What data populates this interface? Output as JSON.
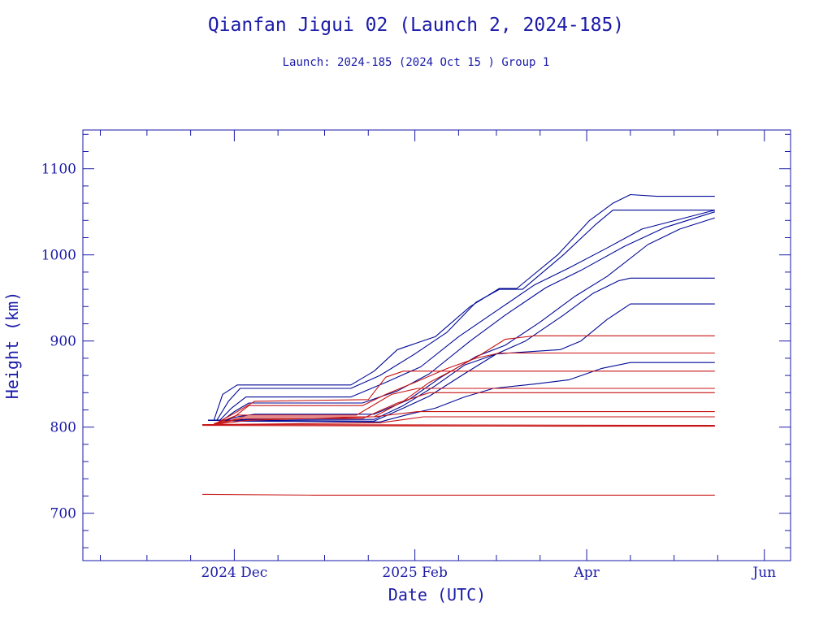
{
  "chart_data": {
    "type": "line",
    "title": "Qianfan Jigui 02 (Launch 2, 2024-185)",
    "subtitle": "Launch: 2024-185  (2024 Oct 15 )  Group 1",
    "xlabel": "Date (UTC)",
    "ylabel": "Height (km)",
    "x_type": "date",
    "xlim": [
      "2024-10-10",
      "2025-06-10"
    ],
    "ylim": [
      645,
      1145
    ],
    "x_ticks": [
      {
        "date": "2024-12-01",
        "label": "2024 Dec"
      },
      {
        "date": "2025-02-01",
        "label": "2025 Feb"
      },
      {
        "date": "2025-04-01",
        "label": "Apr"
      },
      {
        "date": "2025-06-01",
        "label": "Jun"
      }
    ],
    "y_ticks": [
      700,
      800,
      900,
      1000,
      1100
    ],
    "grid": false,
    "colors": {
      "axis": "#1a1aa8",
      "group_a": "#000a96",
      "group_b": "#c81414"
    },
    "series": [
      {
        "color": "#000a96",
        "points": [
          [
            "2024-11-22",
            808
          ],
          [
            "2024-11-24",
            808
          ],
          [
            "2024-11-27",
            838
          ],
          [
            "2024-12-02",
            849
          ],
          [
            "2025-01-10",
            849
          ],
          [
            "2025-01-18",
            865
          ],
          [
            "2025-01-26",
            890
          ],
          [
            "2025-02-08",
            905
          ],
          [
            "2025-02-20",
            940
          ],
          [
            "2025-03-02",
            961
          ],
          [
            "2025-03-08",
            961
          ],
          [
            "2025-03-22",
            1000
          ],
          [
            "2025-04-02",
            1040
          ],
          [
            "2025-04-10",
            1060
          ],
          [
            "2025-04-16",
            1070
          ],
          [
            "2025-04-25",
            1068
          ],
          [
            "2025-05-15",
            1068
          ]
        ]
      },
      {
        "color": "#000a96",
        "points": [
          [
            "2024-11-22",
            808
          ],
          [
            "2024-11-25",
            808
          ],
          [
            "2024-11-29",
            830
          ],
          [
            "2024-12-03",
            845
          ],
          [
            "2025-01-10",
            845
          ],
          [
            "2025-01-20",
            860
          ],
          [
            "2025-02-01",
            885
          ],
          [
            "2025-02-12",
            910
          ],
          [
            "2025-02-22",
            945
          ],
          [
            "2025-03-02",
            960
          ],
          [
            "2025-03-10",
            960
          ],
          [
            "2025-03-24",
            1000
          ],
          [
            "2025-04-04",
            1035
          ],
          [
            "2025-04-10",
            1052
          ],
          [
            "2025-05-15",
            1052
          ]
        ]
      },
      {
        "color": "#000a96",
        "points": [
          [
            "2024-11-22",
            808
          ],
          [
            "2024-11-26",
            808
          ],
          [
            "2024-11-30",
            822
          ],
          [
            "2024-12-05",
            835
          ],
          [
            "2025-01-10",
            835
          ],
          [
            "2025-01-22",
            852
          ],
          [
            "2025-02-03",
            870
          ],
          [
            "2025-02-16",
            905
          ],
          [
            "2025-03-01",
            935
          ],
          [
            "2025-03-14",
            965
          ],
          [
            "2025-03-26",
            985
          ],
          [
            "2025-04-08",
            1008
          ],
          [
            "2025-04-20",
            1030
          ],
          [
            "2025-05-15",
            1052
          ]
        ]
      },
      {
        "color": "#000a96",
        "points": [
          [
            "2024-11-22",
            808
          ],
          [
            "2024-11-27",
            808
          ],
          [
            "2024-12-01",
            818
          ],
          [
            "2024-12-06",
            828
          ],
          [
            "2025-01-14",
            828
          ],
          [
            "2025-01-26",
            842
          ],
          [
            "2025-02-06",
            862
          ],
          [
            "2025-02-20",
            900
          ],
          [
            "2025-03-04",
            930
          ],
          [
            "2025-03-18",
            962
          ],
          [
            "2025-03-30",
            982
          ],
          [
            "2025-04-14",
            1010
          ],
          [
            "2025-04-28",
            1032
          ],
          [
            "2025-05-15",
            1050
          ]
        ]
      },
      {
        "color": "#000a96",
        "points": [
          [
            "2024-11-22",
            808
          ],
          [
            "2024-11-28",
            808
          ],
          [
            "2024-12-02",
            812
          ],
          [
            "2024-12-08",
            815
          ],
          [
            "2025-01-18",
            815
          ],
          [
            "2025-01-30",
            832
          ],
          [
            "2025-02-10",
            858
          ],
          [
            "2025-02-22",
            882
          ],
          [
            "2025-03-04",
            895
          ],
          [
            "2025-03-16",
            922
          ],
          [
            "2025-03-28",
            952
          ],
          [
            "2025-04-08",
            975
          ],
          [
            "2025-04-22",
            1012
          ],
          [
            "2025-05-03",
            1030
          ],
          [
            "2025-05-15",
            1043
          ]
        ]
      },
      {
        "color": "#000a96",
        "points": [
          [
            "2024-11-22",
            808
          ],
          [
            "2024-11-30",
            808
          ],
          [
            "2024-12-06",
            809
          ],
          [
            "2025-01-18",
            809
          ],
          [
            "2025-01-28",
            825
          ],
          [
            "2025-02-08",
            848
          ],
          [
            "2025-02-18",
            872
          ],
          [
            "2025-03-01",
            885
          ],
          [
            "2025-03-11",
            900
          ],
          [
            "2025-03-24",
            930
          ],
          [
            "2025-04-03",
            955
          ],
          [
            "2025-04-12",
            970
          ],
          [
            "2025-04-16",
            973
          ],
          [
            "2025-05-15",
            973
          ]
        ]
      },
      {
        "color": "#000a96",
        "points": [
          [
            "2024-11-22",
            808
          ],
          [
            "2024-12-04",
            808
          ],
          [
            "2025-01-18",
            807
          ],
          [
            "2025-01-28",
            822
          ],
          [
            "2025-02-06",
            836
          ],
          [
            "2025-02-18",
            862
          ],
          [
            "2025-03-01",
            885
          ],
          [
            "2025-03-14",
            888
          ],
          [
            "2025-03-23",
            890
          ],
          [
            "2025-03-30",
            900
          ],
          [
            "2025-04-08",
            925
          ],
          [
            "2025-04-16",
            943
          ],
          [
            "2025-05-15",
            943
          ]
        ]
      },
      {
        "color": "#000a96",
        "points": [
          [
            "2024-11-22",
            808
          ],
          [
            "2024-12-04",
            807
          ],
          [
            "2025-01-20",
            806
          ],
          [
            "2025-01-30",
            815
          ],
          [
            "2025-02-08",
            822
          ],
          [
            "2025-02-18",
            835
          ],
          [
            "2025-02-28",
            845
          ],
          [
            "2025-03-14",
            850
          ],
          [
            "2025-03-26",
            855
          ],
          [
            "2025-04-06",
            868
          ],
          [
            "2025-04-16",
            875
          ],
          [
            "2025-05-15",
            875
          ]
        ]
      },
      {
        "color": "#c81414",
        "points": [
          [
            "2024-11-24",
            804
          ],
          [
            "2024-11-30",
            808
          ],
          [
            "2024-12-04",
            812
          ],
          [
            "2025-01-18",
            812
          ],
          [
            "2025-01-28",
            830
          ],
          [
            "2025-02-06",
            852
          ],
          [
            "2025-02-14",
            866
          ],
          [
            "2025-02-24",
            885
          ],
          [
            "2025-03-04",
            902
          ],
          [
            "2025-03-14",
            906
          ],
          [
            "2025-05-15",
            906
          ]
        ]
      },
      {
        "color": "#c81414",
        "points": [
          [
            "2024-11-24",
            804
          ],
          [
            "2024-12-01",
            812
          ],
          [
            "2024-12-06",
            825
          ],
          [
            "2025-01-14",
            825
          ],
          [
            "2025-01-22",
            838
          ],
          [
            "2025-02-01",
            852
          ],
          [
            "2025-02-12",
            868
          ],
          [
            "2025-02-22",
            880
          ],
          [
            "2025-03-02",
            886
          ],
          [
            "2025-05-15",
            886
          ]
        ]
      },
      {
        "color": "#c81414",
        "points": [
          [
            "2024-11-24",
            803
          ],
          [
            "2024-12-02",
            818
          ],
          [
            "2024-12-08",
            830
          ],
          [
            "2025-01-16",
            832
          ],
          [
            "2025-01-22",
            858
          ],
          [
            "2025-01-28",
            865
          ],
          [
            "2025-05-15",
            865
          ]
        ]
      },
      {
        "color": "#c81414",
        "points": [
          [
            "2024-11-24",
            803
          ],
          [
            "2024-12-02",
            814
          ],
          [
            "2025-01-12",
            814
          ],
          [
            "2025-01-24",
            838
          ],
          [
            "2025-02-02",
            845
          ],
          [
            "2025-05-15",
            845
          ]
        ]
      },
      {
        "color": "#c81414",
        "points": [
          [
            "2024-11-24",
            803
          ],
          [
            "2024-12-04",
            810
          ],
          [
            "2025-01-14",
            810
          ],
          [
            "2025-01-26",
            828
          ],
          [
            "2025-02-06",
            840
          ],
          [
            "2025-05-15",
            840
          ]
        ]
      },
      {
        "color": "#c81414",
        "points": [
          [
            "2024-11-24",
            803
          ],
          [
            "2024-12-06",
            808
          ],
          [
            "2025-01-18",
            812
          ],
          [
            "2025-02-02",
            818
          ],
          [
            "2025-05-15",
            818
          ]
        ]
      },
      {
        "color": "#c81414",
        "points": [
          [
            "2024-11-24",
            803
          ],
          [
            "2025-01-20",
            805
          ],
          [
            "2025-02-04",
            812
          ],
          [
            "2025-05-15",
            812
          ]
        ]
      },
      {
        "color": "#c81414",
        "points": [
          [
            "2024-11-20",
            803
          ],
          [
            "2025-05-15",
            802
          ]
        ]
      },
      {
        "color": "#c81414",
        "points": [
          [
            "2024-11-20",
            802
          ],
          [
            "2025-03-25",
            801
          ],
          [
            "2025-05-15",
            801
          ]
        ]
      },
      {
        "color": "#c81414",
        "points": [
          [
            "2024-11-20",
            722
          ],
          [
            "2024-12-28",
            721
          ],
          [
            "2025-05-15",
            721
          ]
        ]
      }
    ]
  }
}
